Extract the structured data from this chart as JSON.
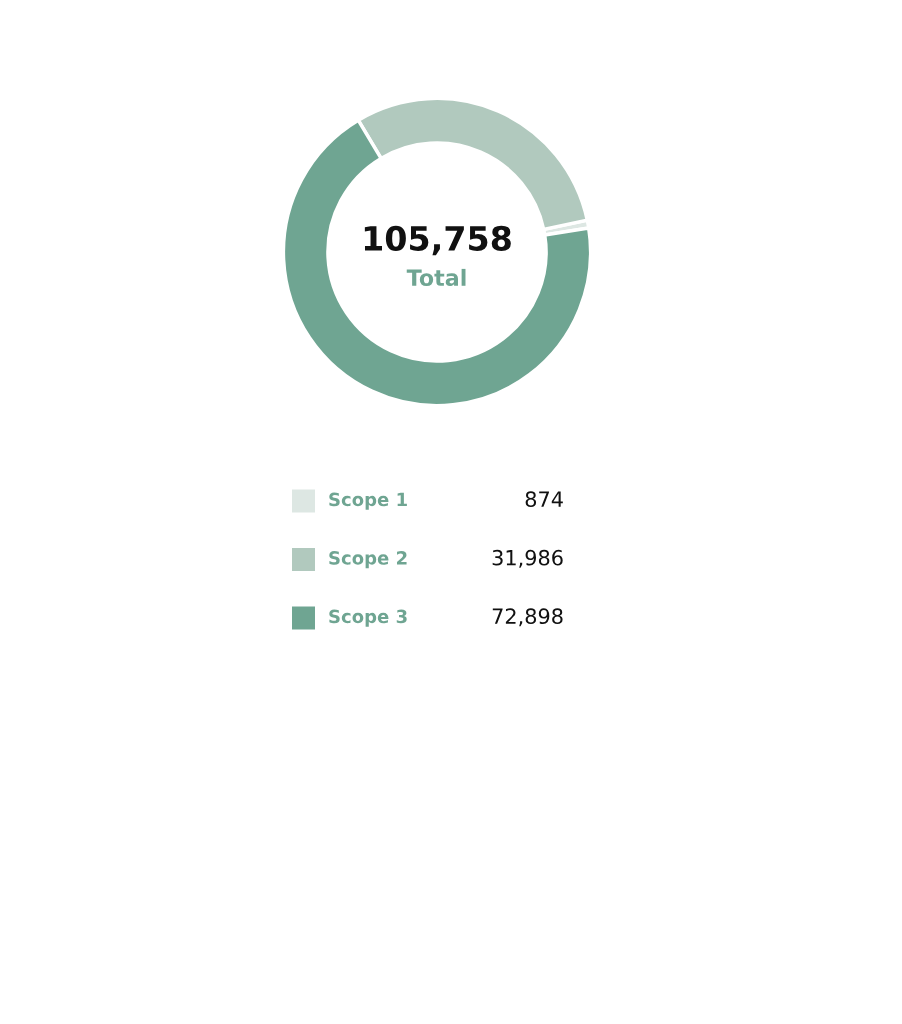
{
  "chart_data": {
    "type": "donut",
    "categories": [
      "Scope 1",
      "Scope 2",
      "Scope 3"
    ],
    "values": [
      874,
      31986,
      72898
    ],
    "colors": [
      "#dde7e3",
      "#b1c9be",
      "#6fa592"
    ],
    "value_labels": [
      "874",
      "31,986",
      "72,898"
    ],
    "annotations": [
      "105,758",
      "Total"
    ],
    "legend": "bottom"
  }
}
